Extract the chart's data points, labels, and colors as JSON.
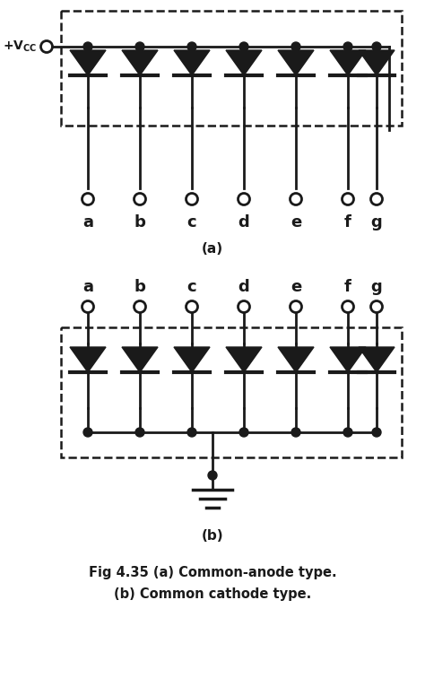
{
  "labels": [
    "a",
    "b",
    "c",
    "d",
    "e",
    "f",
    "g"
  ],
  "n_leds": 7,
  "fig_width": 4.74,
  "fig_height": 7.66,
  "bg_color": "#ffffff",
  "line_color": "#1a1a1a",
  "title_line1": "Fig 4.35 (a) Common-anode type.",
  "title_line2": "(b) Common cathode type.",
  "label_a": "(a)",
  "label_b": "(b)"
}
